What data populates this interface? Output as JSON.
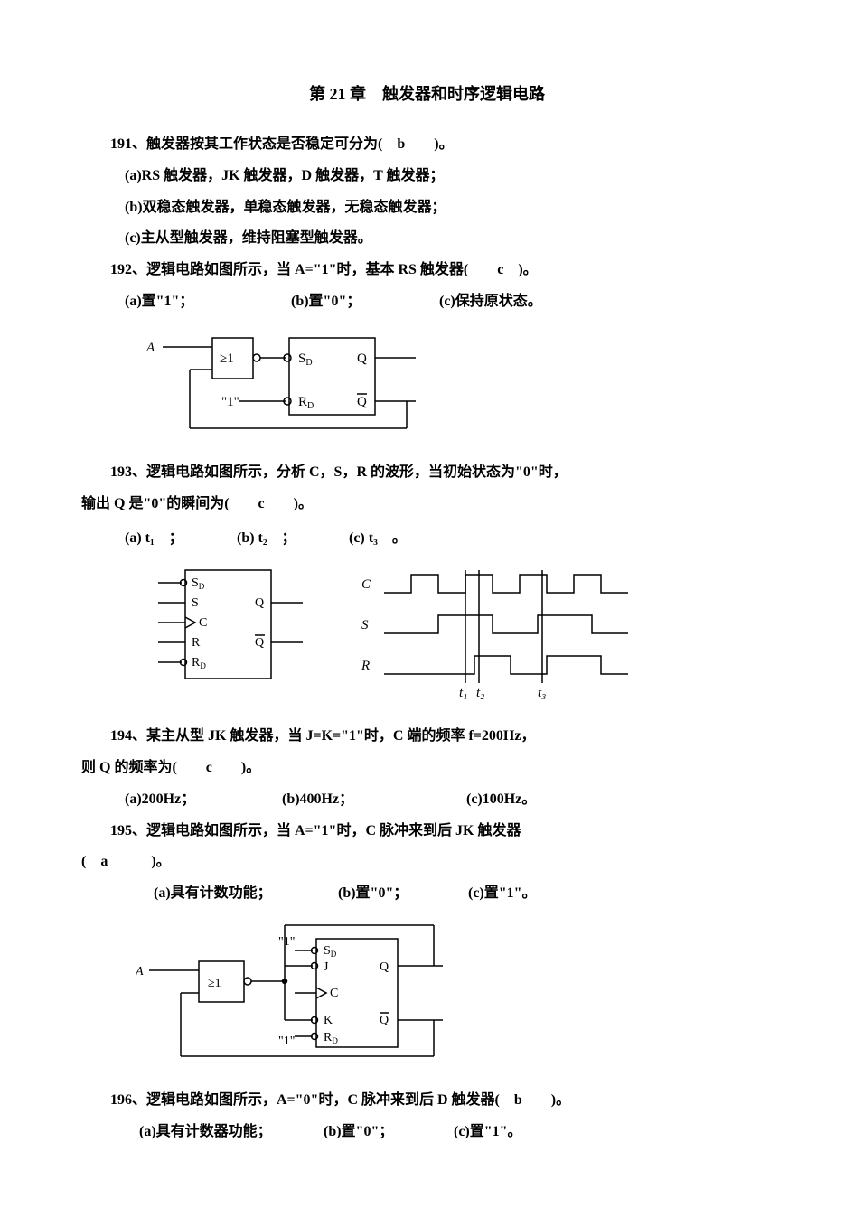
{
  "title": "第 21 章　触发器和时序逻辑电路",
  "q191": {
    "num": "191、",
    "stem": "触发器按其工作状态是否稳定可分为(　b　　)。",
    "opt_a": "(a)RS 触发器，JK 触发器，D 触发器，T 触发器；",
    "opt_b": "(b)双稳态触发器，单稳态触发器，无稳态触发器；",
    "opt_c": "(c)主从型触发器，维持阻塞型触发器。"
  },
  "q192": {
    "num": "192、",
    "stem": "逻辑电路如图所示，当 A=\"1\"时，基本 RS 触发器(　　c　)。",
    "opt_a": "(a)置\"1\"；",
    "opt_b": "(b)置\"0\"；",
    "opt_c": "(c)保持原状态。"
  },
  "q193": {
    "num_stem": "193、逻辑电路如图所示，分析 C，S，R 的波形，当初始状态为\"0\"时，",
    "stem2": "输出 Q 是\"0\"的瞬间为(　　c　　)。",
    "opt_a": "(a) t₁　；",
    "opt_b": "(b) t₂　；",
    "opt_c": "(c) t₃　。"
  },
  "q194": {
    "line1": "194、某主从型 JK 触发器，当 J=K=\"1\"时，C 端的频率 f=200Hz，",
    "line2": "则 Q 的频率为(　　c　　)。",
    "opt_a": "(a)200Hz；",
    "opt_b": "(b)400Hz；",
    "opt_c": "(c)100Hz。"
  },
  "q195": {
    "line1": "195、逻辑电路如图所示，当 A=\"1\"时，C 脉冲来到后 JK 触发器",
    "line2": "(　a　　　)。",
    "opt_a": "(a)具有计数功能；",
    "opt_b": "(b)置\"0\"；",
    "opt_c": "(c)置\"1\"。"
  },
  "q196": {
    "line1": "196、逻辑电路如图所示，A=\"0\"时，C 脉冲来到后 D 触发器(　b　　)。",
    "opt_a": "(a)具有计数器功能；",
    "opt_b": "(b)置\"0\"；",
    "opt_c": "(c)置\"1\"。"
  },
  "diagrams": {
    "d192": {
      "labels": {
        "A": "A",
        "one": "\"1\"",
        "ge1": "≥1",
        "Sd": "S",
        "Sd_sub": "D",
        "Rd": "R",
        "Rd_sub": "D",
        "Q": "Q",
        "Qbar": "Q̄"
      },
      "stroke": "#000000",
      "stroke_width": 1.5,
      "font_family": "Times New Roman, serif",
      "font_size": 15
    },
    "d193_left": {
      "labels": {
        "Sd": "S",
        "Sd_sub": "D",
        "S": "S",
        "C": "C",
        "R": "R",
        "Rd": "R",
        "Rd_sub": "D",
        "Q": "Q",
        "Qbar": "Q̄"
      },
      "stroke": "#000000",
      "stroke_width": 1.5,
      "font_family": "Times New Roman, serif",
      "font_size": 14
    },
    "d193_right": {
      "labels": {
        "C": "C",
        "S": "S",
        "R": "R",
        "t1": "t₁",
        "t2": "t₂",
        "t3": "t₃"
      },
      "stroke": "#000000",
      "stroke_width": 1.5,
      "font_family": "Times New Roman, serif",
      "font_size": 15,
      "C_wave": [
        0,
        1,
        0,
        1,
        0,
        1,
        0,
        1,
        0
      ],
      "C_seg": [
        30,
        30,
        30,
        30,
        30,
        30,
        30,
        30,
        30
      ],
      "S_wave": [
        0,
        1,
        0,
        1,
        0
      ],
      "S_seg": [
        60,
        60,
        50,
        60,
        40
      ],
      "R_wave": [
        0,
        1,
        0,
        1,
        0
      ],
      "R_seg": [
        100,
        40,
        40,
        60,
        30
      ]
    },
    "d195": {
      "labels": {
        "A": "A",
        "one": "\"1\"",
        "ge1": "≥1",
        "Sd": "S",
        "Sd_sub": "D",
        "J": "J",
        "C": "C",
        "K": "K",
        "Rd": "R",
        "Rd_sub": "D",
        "Q": "Q",
        "Qbar": "Q̄"
      },
      "stroke": "#000000",
      "stroke_width": 1.5,
      "font_family": "Times New Roman, serif",
      "font_size": 14
    }
  }
}
